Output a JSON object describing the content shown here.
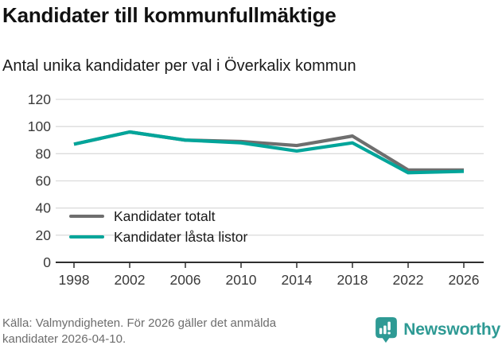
{
  "header": {
    "title": "Kandidater till kommunfullmäktige",
    "subtitle": "Antal unika kandidater per val i Överkalix kommun"
  },
  "chart_data": {
    "type": "line",
    "title": "Kandidater till kommunfullmäktige",
    "subtitle": "Antal unika kandidater per val i Överkalix kommun",
    "x": [
      1998,
      2002,
      2006,
      2010,
      2014,
      2018,
      2022,
      2026
    ],
    "series": [
      {
        "name": "Kandidater totalt",
        "color": "#6e6e6e",
        "values": [
          87,
          96,
          90,
          89,
          86,
          93,
          68,
          68
        ]
      },
      {
        "name": "Kandidater låsta listor",
        "color": "#00a59a",
        "values": [
          87,
          96,
          90,
          88,
          82,
          88,
          66,
          67
        ]
      }
    ],
    "ylim": [
      0,
      120
    ],
    "yticks": [
      0,
      20,
      40,
      60,
      80,
      100,
      120
    ],
    "grid": "horizontal-only",
    "gridline_color": "#dcdcdc",
    "axis_color": "#2f2f2f",
    "legend_position": "inside-lower-left"
  },
  "footer": {
    "source_lines": [
      "Källa: Valmyndigheten. För 2026 gäller det anmälda",
      "kandidater 2026-04-10."
    ],
    "brand": {
      "name": "Newsworthy",
      "color": "#2e9a94",
      "icon": "bar-chart-speech-bubble-icon"
    }
  }
}
